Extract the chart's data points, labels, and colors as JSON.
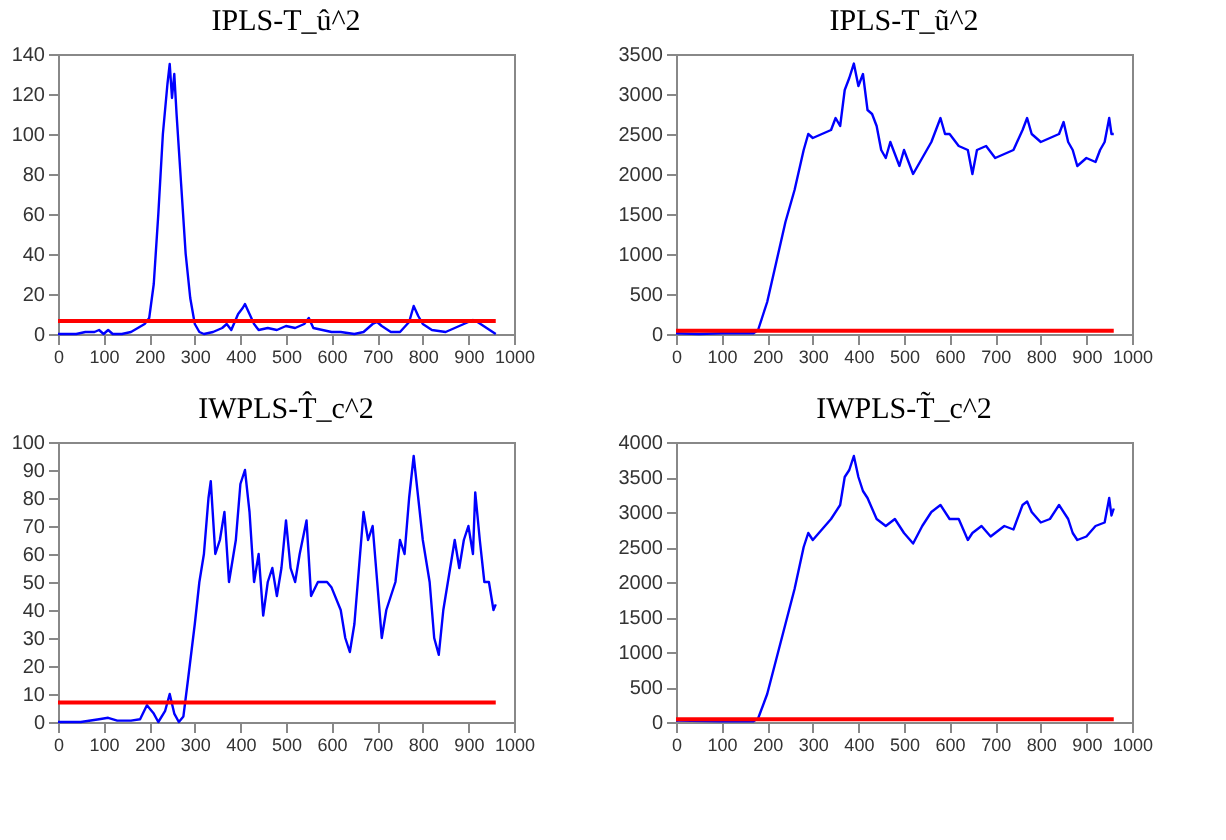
{
  "chart_data": [
    {
      "type": "line",
      "title": "IPLS-T_û^2",
      "xlim": [
        0,
        1000
      ],
      "xticks": [
        0,
        100,
        200,
        300,
        400,
        500,
        600,
        700,
        800,
        900,
        1000
      ],
      "ylim": [
        0,
        140
      ],
      "yticks": [
        0,
        20,
        40,
        60,
        80,
        100,
        120,
        140
      ],
      "grid": false,
      "legend": false,
      "marker": "none",
      "series": [
        {
          "color": "#0000ff",
          "x": [
            0,
            20,
            40,
            60,
            80,
            90,
            100,
            110,
            120,
            140,
            160,
            175,
            190,
            200,
            210,
            220,
            230,
            240,
            245,
            250,
            255,
            260,
            270,
            280,
            290,
            300,
            310,
            320,
            340,
            360,
            370,
            380,
            395,
            405,
            410,
            420,
            430,
            440,
            460,
            480,
            500,
            520,
            540,
            550,
            560,
            580,
            600,
            620,
            650,
            670,
            690,
            700,
            710,
            730,
            750,
            770,
            780,
            790,
            800,
            820,
            850,
            870,
            890,
            910,
            920,
            940,
            960
          ],
          "values": [
            0,
            0,
            0,
            1,
            1,
            2,
            0,
            2,
            0,
            0,
            1,
            3,
            5,
            8,
            25,
            60,
            100,
            125,
            135,
            118,
            130,
            110,
            75,
            40,
            18,
            5,
            1,
            0,
            1,
            3,
            5,
            2,
            10,
            13,
            15,
            10,
            5,
            2,
            3,
            2,
            4,
            3,
            5,
            8,
            3,
            2,
            1,
            1,
            0,
            1,
            5,
            6,
            4,
            1,
            1,
            6,
            14,
            9,
            5,
            2,
            1,
            3,
            5,
            7,
            6,
            3,
            0
          ]
        }
      ],
      "ref_lines": [
        {
          "axis": "y",
          "value": 6.5,
          "color": "#ff0000"
        }
      ]
    },
    {
      "type": "line",
      "title": "IPLS-T_ũ^2",
      "xlim": [
        0,
        1000
      ],
      "xticks": [
        0,
        100,
        200,
        300,
        400,
        500,
        600,
        700,
        800,
        900,
        1000
      ],
      "ylim": [
        0,
        3500
      ],
      "yticks": [
        0,
        500,
        1000,
        1500,
        2000,
        2500,
        3000,
        3500
      ],
      "grid": false,
      "legend": false,
      "marker": "none",
      "series": [
        {
          "color": "#0000ff",
          "x": [
            0,
            50,
            100,
            150,
            170,
            180,
            200,
            220,
            240,
            260,
            280,
            290,
            300,
            320,
            340,
            350,
            360,
            370,
            380,
            390,
            400,
            410,
            420,
            430,
            440,
            450,
            460,
            470,
            480,
            490,
            500,
            520,
            540,
            560,
            580,
            590,
            600,
            620,
            640,
            650,
            660,
            680,
            700,
            720,
            740,
            760,
            770,
            780,
            800,
            820,
            840,
            850,
            860,
            870,
            880,
            900,
            920,
            930,
            940,
            950,
            955,
            960
          ],
          "values": [
            10,
            0,
            10,
            10,
            10,
            50,
            400,
            900,
            1400,
            1800,
            2300,
            2500,
            2450,
            2500,
            2550,
            2700,
            2600,
            3050,
            3200,
            3380,
            3100,
            3250,
            2800,
            2750,
            2600,
            2300,
            2200,
            2400,
            2250,
            2100,
            2300,
            2000,
            2200,
            2400,
            2700,
            2500,
            2500,
            2350,
            2300,
            2000,
            2300,
            2350,
            2200,
            2250,
            2300,
            2550,
            2700,
            2500,
            2400,
            2450,
            2500,
            2650,
            2400,
            2300,
            2100,
            2200,
            2150,
            2300,
            2400,
            2700,
            2500,
            2500
          ]
        }
      ],
      "ref_lines": [
        {
          "axis": "y",
          "value": 40,
          "color": "#ff0000"
        }
      ]
    },
    {
      "type": "line",
      "title": "IWPLS-T̂_c^2",
      "xlim": [
        0,
        1000
      ],
      "xticks": [
        0,
        100,
        200,
        300,
        400,
        500,
        600,
        700,
        800,
        900,
        1000
      ],
      "ylim": [
        0,
        100
      ],
      "yticks": [
        0,
        10,
        20,
        30,
        40,
        50,
        60,
        70,
        80,
        90,
        100
      ],
      "grid": false,
      "legend": false,
      "marker": "none",
      "series": [
        {
          "color": "#0000ff",
          "x": [
            0,
            50,
            90,
            110,
            130,
            160,
            180,
            195,
            210,
            220,
            235,
            245,
            255,
            265,
            275,
            285,
            300,
            310,
            320,
            330,
            335,
            345,
            355,
            365,
            375,
            390,
            400,
            410,
            420,
            430,
            440,
            450,
            460,
            470,
            480,
            490,
            500,
            510,
            520,
            530,
            545,
            555,
            570,
            590,
            600,
            620,
            630,
            640,
            650,
            660,
            670,
            680,
            690,
            700,
            710,
            720,
            740,
            750,
            760,
            770,
            780,
            790,
            800,
            815,
            825,
            835,
            845,
            860,
            870,
            880,
            890,
            900,
            910,
            915,
            925,
            935,
            945,
            955,
            960
          ],
          "values": [
            0,
            0,
            1,
            1.5,
            0.5,
            0.5,
            1,
            6,
            3,
            0,
            4,
            10,
            3,
            0,
            2,
            15,
            35,
            50,
            60,
            80,
            86,
            60,
            65,
            75,
            50,
            65,
            85,
            90,
            75,
            50,
            60,
            38,
            50,
            55,
            45,
            55,
            72,
            55,
            50,
            60,
            72,
            45,
            50,
            50,
            48,
            40,
            30,
            25,
            35,
            55,
            75,
            65,
            70,
            50,
            30,
            40,
            50,
            65,
            60,
            80,
            95,
            80,
            65,
            50,
            30,
            24,
            40,
            55,
            65,
            55,
            65,
            70,
            60,
            82,
            65,
            50,
            50,
            40,
            42
          ]
        }
      ],
      "ref_lines": [
        {
          "axis": "y",
          "value": 7,
          "color": "#ff0000"
        }
      ]
    },
    {
      "type": "line",
      "title": "IWPLS-T̃_c^2",
      "xlim": [
        0,
        1000
      ],
      "xticks": [
        0,
        100,
        200,
        300,
        400,
        500,
        600,
        700,
        800,
        900,
        1000
      ],
      "ylim": [
        0,
        4000
      ],
      "yticks": [
        0,
        500,
        1000,
        1500,
        2000,
        2500,
        3000,
        3500,
        4000
      ],
      "grid": false,
      "legend": false,
      "marker": "none",
      "series": [
        {
          "color": "#0000ff",
          "x": [
            0,
            100,
            170,
            180,
            200,
            220,
            240,
            260,
            280,
            290,
            300,
            320,
            340,
            360,
            370,
            380,
            390,
            400,
            410,
            420,
            440,
            460,
            480,
            500,
            520,
            540,
            560,
            580,
            600,
            620,
            640,
            650,
            670,
            690,
            700,
            720,
            740,
            760,
            770,
            780,
            800,
            820,
            840,
            860,
            870,
            880,
            900,
            920,
            940,
            950,
            955,
            960
          ],
          "values": [
            20,
            10,
            10,
            50,
            400,
            900,
            1400,
            1900,
            2500,
            2700,
            2600,
            2750,
            2900,
            3100,
            3500,
            3600,
            3800,
            3500,
            3300,
            3200,
            2900,
            2800,
            2900,
            2700,
            2550,
            2800,
            3000,
            3100,
            2900,
            2900,
            2600,
            2700,
            2800,
            2650,
            2700,
            2800,
            2750,
            3100,
            3150,
            3000,
            2850,
            2900,
            3100,
            2900,
            2700,
            2600,
            2650,
            2800,
            2850,
            3200,
            2950,
            3050
          ]
        }
      ],
      "ref_lines": [
        {
          "axis": "y",
          "value": 40,
          "color": "#ff0000"
        }
      ]
    }
  ]
}
